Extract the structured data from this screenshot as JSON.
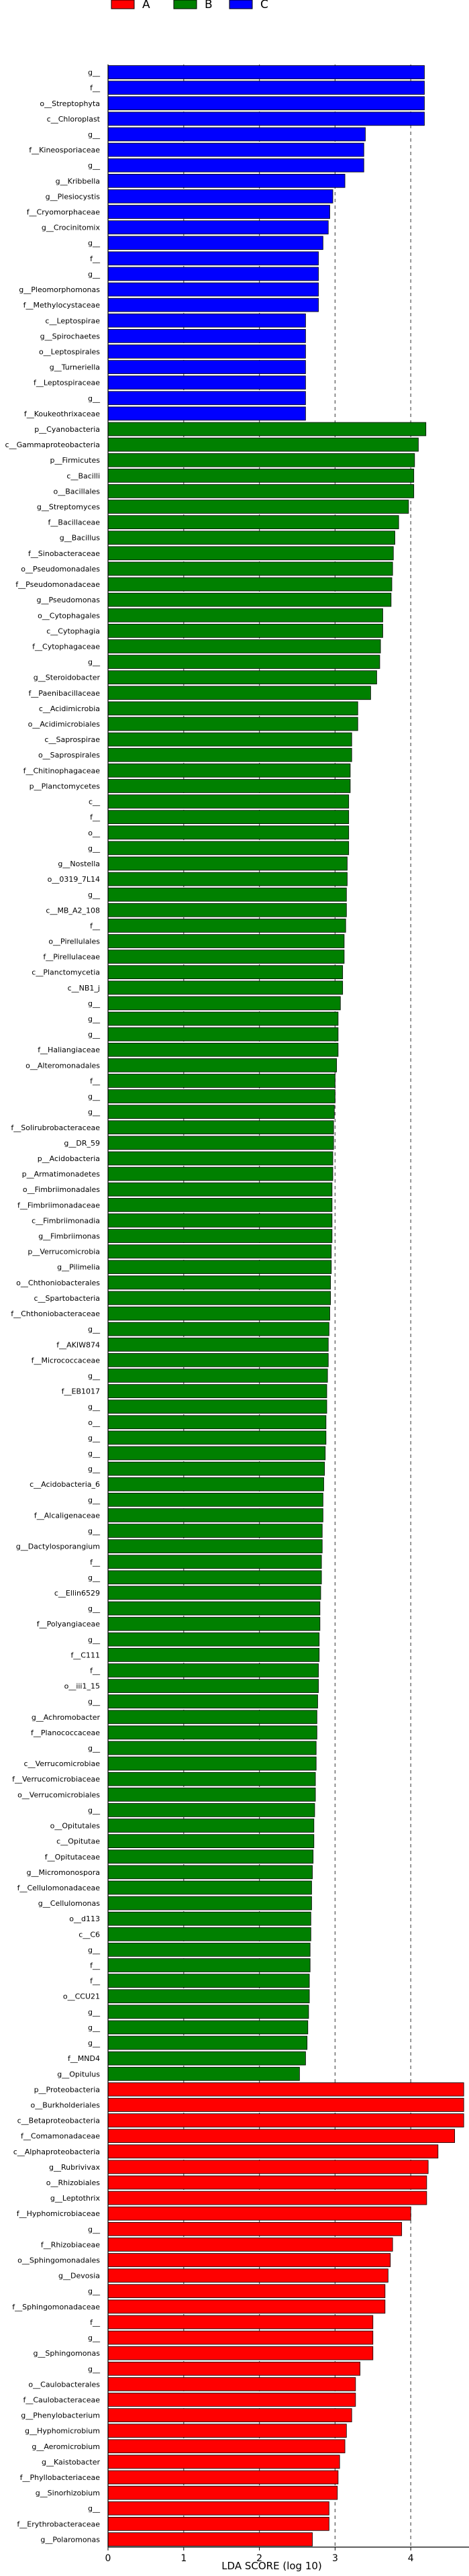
{
  "chart_data": {
    "type": "bar",
    "orientation": "horizontal",
    "title": "",
    "xlabel": "LDA SCORE (log 10)",
    "ylabel": "",
    "xlim": [
      0,
      5
    ],
    "xticks": [
      0,
      1,
      2,
      3,
      4
    ],
    "grid": "vertical dashed",
    "legend_position": "top",
    "legend": [
      {
        "name": "A",
        "color": "#ff0000"
      },
      {
        "name": "B",
        "color": "#008000"
      },
      {
        "name": "C",
        "color": "#0000ff"
      }
    ],
    "bars": [
      {
        "label": "g__",
        "value": 4.18,
        "group": "C"
      },
      {
        "label": "f__",
        "value": 4.18,
        "group": "C"
      },
      {
        "label": "o__Streptophyta",
        "value": 4.18,
        "group": "C"
      },
      {
        "label": "c__Chloroplast",
        "value": 4.18,
        "group": "C"
      },
      {
        "label": "g__",
        "value": 3.4,
        "group": "C"
      },
      {
        "label": "f__Kineosporiaceae",
        "value": 3.38,
        "group": "C"
      },
      {
        "label": "g__",
        "value": 3.38,
        "group": "C"
      },
      {
        "label": "g__Kribbella",
        "value": 3.13,
        "group": "C"
      },
      {
        "label": "g__Plesiocystis",
        "value": 2.97,
        "group": "C"
      },
      {
        "label": "f__Cryomorphaceae",
        "value": 2.93,
        "group": "C"
      },
      {
        "label": "g__Crocinitomix",
        "value": 2.91,
        "group": "C"
      },
      {
        "label": "g__",
        "value": 2.84,
        "group": "C"
      },
      {
        "label": "f__",
        "value": 2.78,
        "group": "C"
      },
      {
        "label": "g__",
        "value": 2.78,
        "group": "C"
      },
      {
        "label": "g__Pleomorphomonas",
        "value": 2.78,
        "group": "C"
      },
      {
        "label": "f__Methylocystaceae",
        "value": 2.78,
        "group": "C"
      },
      {
        "label": "c__Leptospirae",
        "value": 2.61,
        "group": "C"
      },
      {
        "label": "g__Spirochaetes",
        "value": 2.61,
        "group": "C"
      },
      {
        "label": "o__Leptospirales",
        "value": 2.61,
        "group": "C"
      },
      {
        "label": "g__Turneriella",
        "value": 2.61,
        "group": "C"
      },
      {
        "label": "f__Leptospiraceae",
        "value": 2.61,
        "group": "C"
      },
      {
        "label": "g__",
        "value": 2.61,
        "group": "C"
      },
      {
        "label": "f__Koukeothrixaceae",
        "value": 2.61,
        "group": "C"
      },
      {
        "label": "p__Cyanobacteria",
        "value": 4.2,
        "group": "B"
      },
      {
        "label": "c__Gammaproteobacteria",
        "value": 4.1,
        "group": "B"
      },
      {
        "label": "p__Firmicutes",
        "value": 4.05,
        "group": "B"
      },
      {
        "label": "c__Bacilli",
        "value": 4.04,
        "group": "B"
      },
      {
        "label": "o__Bacillales",
        "value": 4.04,
        "group": "B"
      },
      {
        "label": "g__Streptomyces",
        "value": 3.97,
        "group": "B"
      },
      {
        "label": "f__Bacillaceae",
        "value": 3.84,
        "group": "B"
      },
      {
        "label": "g__Bacillus",
        "value": 3.79,
        "group": "B"
      },
      {
        "label": "f__Sinobacteraceae",
        "value": 3.77,
        "group": "B"
      },
      {
        "label": "o__Pseudomonadales",
        "value": 3.76,
        "group": "B"
      },
      {
        "label": "f__Pseudomonadaceae",
        "value": 3.75,
        "group": "B"
      },
      {
        "label": "g__Pseudomonas",
        "value": 3.74,
        "group": "B"
      },
      {
        "label": "o__Cytophagales",
        "value": 3.63,
        "group": "B"
      },
      {
        "label": "c__Cytophagia",
        "value": 3.63,
        "group": "B"
      },
      {
        "label": "f__Cytophagaceae",
        "value": 3.6,
        "group": "B"
      },
      {
        "label": "g__",
        "value": 3.59,
        "group": "B"
      },
      {
        "label": "g__Steroidobacter",
        "value": 3.55,
        "group": "B"
      },
      {
        "label": "f__Paenibacillaceae",
        "value": 3.47,
        "group": "B"
      },
      {
        "label": "c__Acidimicrobia",
        "value": 3.3,
        "group": "B"
      },
      {
        "label": "o__Acidimicrobiales",
        "value": 3.3,
        "group": "B"
      },
      {
        "label": "c__Saprospirae",
        "value": 3.22,
        "group": "B"
      },
      {
        "label": "o__Saprospirales",
        "value": 3.22,
        "group": "B"
      },
      {
        "label": "f__Chitinophagaceae",
        "value": 3.2,
        "group": "B"
      },
      {
        "label": "p__Planctomycetes",
        "value": 3.2,
        "group": "B"
      },
      {
        "label": "c__",
        "value": 3.18,
        "group": "B"
      },
      {
        "label": "f__",
        "value": 3.18,
        "group": "B"
      },
      {
        "label": "o__",
        "value": 3.18,
        "group": "B"
      },
      {
        "label": "g__",
        "value": 3.18,
        "group": "B"
      },
      {
        "label": "g__Nostella",
        "value": 3.16,
        "group": "B"
      },
      {
        "label": "o__0319_7L14",
        "value": 3.16,
        "group": "B"
      },
      {
        "label": "g__",
        "value": 3.15,
        "group": "B"
      },
      {
        "label": "c__MB_A2_108",
        "value": 3.15,
        "group": "B"
      },
      {
        "label": "f__",
        "value": 3.14,
        "group": "B"
      },
      {
        "label": "o__Pirellulales",
        "value": 3.12,
        "group": "B"
      },
      {
        "label": "f__Pirellulaceae",
        "value": 3.12,
        "group": "B"
      },
      {
        "label": "c__Planctomycetia",
        "value": 3.1,
        "group": "B"
      },
      {
        "label": "c__NB1_j",
        "value": 3.1,
        "group": "B"
      },
      {
        "label": "g__",
        "value": 3.07,
        "group": "B"
      },
      {
        "label": "g__",
        "value": 3.04,
        "group": "B"
      },
      {
        "label": "g__",
        "value": 3.04,
        "group": "B"
      },
      {
        "label": "f__Haliangiaceae",
        "value": 3.04,
        "group": "B"
      },
      {
        "label": "o__Alteromonadales",
        "value": 3.02,
        "group": "B"
      },
      {
        "label": "f__",
        "value": 3.0,
        "group": "B"
      },
      {
        "label": "g__",
        "value": 3.0,
        "group": "B"
      },
      {
        "label": "g__",
        "value": 2.99,
        "group": "B"
      },
      {
        "label": "f__Solirubrobacteraceae",
        "value": 2.98,
        "group": "B"
      },
      {
        "label": "g__DR_59",
        "value": 2.98,
        "group": "B"
      },
      {
        "label": "p__Acidobacteria",
        "value": 2.97,
        "group": "B"
      },
      {
        "label": "p__Armatimonadetes",
        "value": 2.97,
        "group": "B"
      },
      {
        "label": "o__Fimbriimonadales",
        "value": 2.96,
        "group": "B"
      },
      {
        "label": "f__Fimbriimonadaceae",
        "value": 2.96,
        "group": "B"
      },
      {
        "label": "c__Fimbriimonadia",
        "value": 2.96,
        "group": "B"
      },
      {
        "label": "g__Fimbriimonas",
        "value": 2.96,
        "group": "B"
      },
      {
        "label": "p__Verrucomicrobia",
        "value": 2.95,
        "group": "B"
      },
      {
        "label": "g__Pilimelia",
        "value": 2.95,
        "group": "B"
      },
      {
        "label": "o__Chthoniobacterales",
        "value": 2.94,
        "group": "B"
      },
      {
        "label": "c__Spartobacteria",
        "value": 2.94,
        "group": "B"
      },
      {
        "label": "f__Chthoniobacteraceae",
        "value": 2.93,
        "group": "B"
      },
      {
        "label": "g__",
        "value": 2.92,
        "group": "B"
      },
      {
        "label": "f__AKIW874",
        "value": 2.91,
        "group": "B"
      },
      {
        "label": "f__Micrococcaceae",
        "value": 2.91,
        "group": "B"
      },
      {
        "label": "g__",
        "value": 2.9,
        "group": "B"
      },
      {
        "label": "f__EB1017",
        "value": 2.89,
        "group": "B"
      },
      {
        "label": "g__",
        "value": 2.89,
        "group": "B"
      },
      {
        "label": "o__",
        "value": 2.88,
        "group": "B"
      },
      {
        "label": "g__",
        "value": 2.88,
        "group": "B"
      },
      {
        "label": "g__",
        "value": 2.87,
        "group": "B"
      },
      {
        "label": "g__",
        "value": 2.86,
        "group": "B"
      },
      {
        "label": "c__Acidobacteria_6",
        "value": 2.85,
        "group": "B"
      },
      {
        "label": "g__",
        "value": 2.84,
        "group": "B"
      },
      {
        "label": "f__Alcaligenaceae",
        "value": 2.84,
        "group": "B"
      },
      {
        "label": "g__",
        "value": 2.83,
        "group": "B"
      },
      {
        "label": "g__Dactylosporangium",
        "value": 2.83,
        "group": "B"
      },
      {
        "label": "f__",
        "value": 2.82,
        "group": "B"
      },
      {
        "label": "g__",
        "value": 2.82,
        "group": "B"
      },
      {
        "label": "c__Ellin6529",
        "value": 2.81,
        "group": "B"
      },
      {
        "label": "g__",
        "value": 2.8,
        "group": "B"
      },
      {
        "label": "f__Polyangiaceae",
        "value": 2.8,
        "group": "B"
      },
      {
        "label": "g__",
        "value": 2.79,
        "group": "B"
      },
      {
        "label": "f__C111",
        "value": 2.79,
        "group": "B"
      },
      {
        "label": "f__",
        "value": 2.78,
        "group": "B"
      },
      {
        "label": "o__iii1_15",
        "value": 2.78,
        "group": "B"
      },
      {
        "label": "g__",
        "value": 2.77,
        "group": "B"
      },
      {
        "label": "g__Achromobacter",
        "value": 2.76,
        "group": "B"
      },
      {
        "label": "f__Planococcaceae",
        "value": 2.76,
        "group": "B"
      },
      {
        "label": "g__",
        "value": 2.75,
        "group": "B"
      },
      {
        "label": "c__Verrucomicrobiae",
        "value": 2.75,
        "group": "B"
      },
      {
        "label": "f__Verrucomicrobiaceae",
        "value": 2.74,
        "group": "B"
      },
      {
        "label": "o__Verrucomicrobiales",
        "value": 2.74,
        "group": "B"
      },
      {
        "label": "g__",
        "value": 2.73,
        "group": "B"
      },
      {
        "label": "o__Opitutales",
        "value": 2.72,
        "group": "B"
      },
      {
        "label": "c__Opitutae",
        "value": 2.72,
        "group": "B"
      },
      {
        "label": "f__Opitutaceae",
        "value": 2.71,
        "group": "B"
      },
      {
        "label": "g__Micromonospora",
        "value": 2.7,
        "group": "B"
      },
      {
        "label": "f__Cellulomonadaceae",
        "value": 2.69,
        "group": "B"
      },
      {
        "label": "g__Cellulomonas",
        "value": 2.69,
        "group": "B"
      },
      {
        "label": "o__d113",
        "value": 2.68,
        "group": "B"
      },
      {
        "label": "c__C6",
        "value": 2.68,
        "group": "B"
      },
      {
        "label": "g__",
        "value": 2.67,
        "group": "B"
      },
      {
        "label": "f__",
        "value": 2.67,
        "group": "B"
      },
      {
        "label": "f__",
        "value": 2.66,
        "group": "B"
      },
      {
        "label": "o__CCU21",
        "value": 2.66,
        "group": "B"
      },
      {
        "label": "g__",
        "value": 2.65,
        "group": "B"
      },
      {
        "label": "g__",
        "value": 2.64,
        "group": "B"
      },
      {
        "label": "g__",
        "value": 2.63,
        "group": "B"
      },
      {
        "label": "f__MND4",
        "value": 2.61,
        "group": "B"
      },
      {
        "label": "g__Opitulus",
        "value": 2.53,
        "group": "B"
      },
      {
        "label": "p__Proteobacteria",
        "value": 4.7,
        "group": "A"
      },
      {
        "label": "o__Burkholderiales",
        "value": 4.7,
        "group": "A"
      },
      {
        "label": "c__Betaproteobacteria",
        "value": 4.7,
        "group": "A"
      },
      {
        "label": "f__Comamonadaceae",
        "value": 4.58,
        "group": "A"
      },
      {
        "label": "c__Alphaproteobacteria",
        "value": 4.36,
        "group": "A"
      },
      {
        "label": "g__Rubrivivax",
        "value": 4.23,
        "group": "A"
      },
      {
        "label": "o__Rhizobiales",
        "value": 4.21,
        "group": "A"
      },
      {
        "label": "g__Leptothrix",
        "value": 4.21,
        "group": "A"
      },
      {
        "label": "f__Hyphomicrobiaceae",
        "value": 4.0,
        "group": "A"
      },
      {
        "label": "g__",
        "value": 3.88,
        "group": "A"
      },
      {
        "label": "f__Rhizobiaceae",
        "value": 3.76,
        "group": "A"
      },
      {
        "label": "o__Sphingomonadales",
        "value": 3.73,
        "group": "A"
      },
      {
        "label": "g__Devosia",
        "value": 3.7,
        "group": "A"
      },
      {
        "label": "g__",
        "value": 3.66,
        "group": "A"
      },
      {
        "label": "f__Sphingomonadaceae",
        "value": 3.66,
        "group": "A"
      },
      {
        "label": "f__",
        "value": 3.5,
        "group": "A"
      },
      {
        "label": "g__",
        "value": 3.5,
        "group": "A"
      },
      {
        "label": "g__Sphingomonas",
        "value": 3.5,
        "group": "A"
      },
      {
        "label": "g__",
        "value": 3.33,
        "group": "A"
      },
      {
        "label": "o__Caulobacterales",
        "value": 3.27,
        "group": "A"
      },
      {
        "label": "f__Caulobacteraceae",
        "value": 3.27,
        "group": "A"
      },
      {
        "label": "g__Phenylobacterium",
        "value": 3.22,
        "group": "A"
      },
      {
        "label": "g__Hyphomicrobium",
        "value": 3.15,
        "group": "A"
      },
      {
        "label": "g__Aeromicrobium",
        "value": 3.13,
        "group": "A"
      },
      {
        "label": "g__Kaistobacter",
        "value": 3.06,
        "group": "A"
      },
      {
        "label": "f__Phyllobacteriaceae",
        "value": 3.04,
        "group": "A"
      },
      {
        "label": "g__Sinorhizobium",
        "value": 3.03,
        "group": "A"
      },
      {
        "label": "g__",
        "value": 2.92,
        "group": "A"
      },
      {
        "label": "f__Erythrobacteraceae",
        "value": 2.92,
        "group": "A"
      },
      {
        "label": "g__Polaromonas",
        "value": 2.7,
        "group": "A"
      }
    ]
  }
}
